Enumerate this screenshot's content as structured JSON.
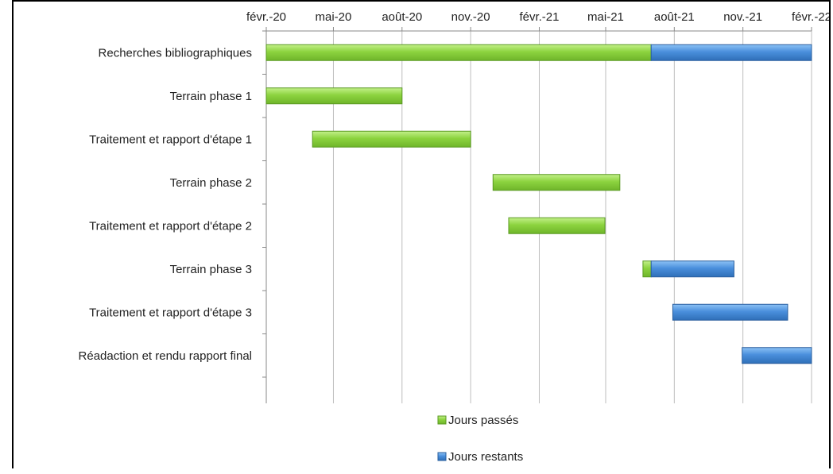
{
  "chart_data": {
    "type": "bar",
    "subtype": "gantt-stacked-horizontal",
    "x_axis": {
      "position": "top",
      "ticks": [
        "févr.-20",
        "mai-20",
        "août-20",
        "nov.-20",
        "févr.-21",
        "mai-21",
        "août-21",
        "nov.-21",
        "févr.-22"
      ],
      "tick_dates": [
        "2020-02-01",
        "2020-05-01",
        "2020-08-01",
        "2020-11-01",
        "2021-02-01",
        "2021-05-01",
        "2021-08-01",
        "2021-11-01",
        "2022-02-01"
      ],
      "range": [
        "2020-02-01",
        "2022-02-01"
      ]
    },
    "grid": "vertical",
    "categories": [
      "Recherches bibliographiques",
      "Terrain phase 1",
      "Traitement et rapport d'étape 1",
      "Terrain phase 2",
      "Traitement et rapport d'étape 2",
      "Terrain phase 3",
      "Traitement et rapport d'étape 3",
      "Réadaction et rendu rapport final"
    ],
    "tasks": [
      {
        "start": "2020-02-01",
        "split": "2021-07-01",
        "end": "2022-02-01"
      },
      {
        "start": "2020-02-01",
        "split": "2020-08-01",
        "end": "2020-08-01"
      },
      {
        "start": "2020-04-03",
        "split": "2020-11-01",
        "end": "2020-11-01"
      },
      {
        "start": "2020-12-01",
        "split": "2021-05-20",
        "end": "2021-05-20"
      },
      {
        "start": "2020-12-22",
        "split": "2021-04-30",
        "end": "2021-04-30"
      },
      {
        "start": "2021-06-20",
        "split": "2021-07-01",
        "end": "2021-10-20"
      },
      {
        "start": "2021-07-30",
        "split": "2021-07-30",
        "end": "2021-12-31"
      },
      {
        "start": "2021-10-31",
        "split": "2021-10-31",
        "end": "2022-02-01"
      }
    ],
    "series": [
      {
        "name": "Jours passés",
        "color": "#8cd33f"
      },
      {
        "name": "Jours restants",
        "color": "#4a8fdc"
      }
    ],
    "legend_position": "bottom"
  }
}
